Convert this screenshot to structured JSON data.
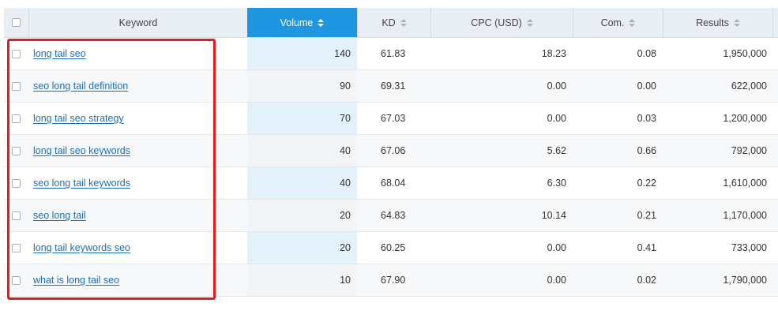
{
  "columns": {
    "keyword": "Keyword",
    "volume": "Volume",
    "kd": "KD",
    "cpc": "CPC (USD)",
    "com": "Com.",
    "results": "Results"
  },
  "rows": [
    {
      "keyword": "long tail seo",
      "volume": "140",
      "kd": "61.83",
      "cpc": "18.23",
      "com": "0.08",
      "results": "1,950,000"
    },
    {
      "keyword": "seo long tail definition",
      "volume": "90",
      "kd": "69.31",
      "cpc": "0.00",
      "com": "0.00",
      "results": "622,000"
    },
    {
      "keyword": "long tail seo strategy",
      "volume": "70",
      "kd": "67.03",
      "cpc": "0.00",
      "com": "0.03",
      "results": "1,200,000"
    },
    {
      "keyword": "long tail seo keywords",
      "volume": "40",
      "kd": "67.06",
      "cpc": "5.62",
      "com": "0.66",
      "results": "792,000"
    },
    {
      "keyword": "seo long tail keywords",
      "volume": "40",
      "kd": "68.04",
      "cpc": "6.30",
      "com": "0.22",
      "results": "1,610,000"
    },
    {
      "keyword": "seo long tail",
      "volume": "20",
      "kd": "64.83",
      "cpc": "10.14",
      "com": "0.21",
      "results": "1,170,000"
    },
    {
      "keyword": "long tail keywords seo",
      "volume": "20",
      "kd": "60.25",
      "cpc": "0.00",
      "com": "0.41",
      "results": "733,000"
    },
    {
      "keyword": "what is long tail seo",
      "volume": "10",
      "kd": "67.90",
      "cpc": "0.00",
      "com": "0.02",
      "results": "1,790,000"
    }
  ],
  "colors": {
    "sorted_header": "#1f97e0",
    "highlight": "#e41c1c",
    "link": "#1a6fb8"
  }
}
